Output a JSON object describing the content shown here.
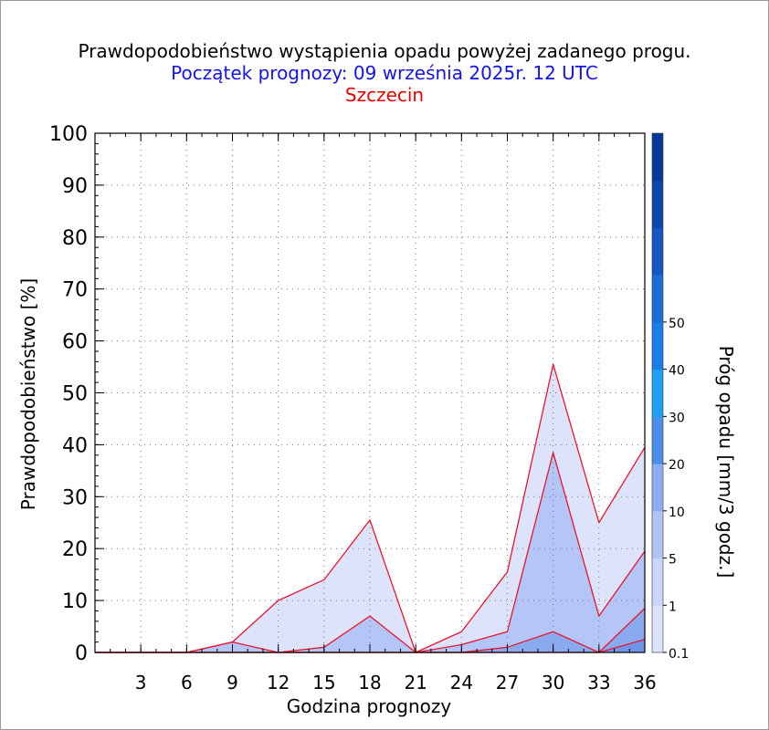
{
  "chart_data": {
    "type": "area",
    "title": "Prawdopodobieństwo wystąpienia opadu powyżej zadanego progu.",
    "subtitle": "Początek prognozy: 09 września 2025r. 12 UTC",
    "location": "Szczecin",
    "xlabel": "Godzina prognozy",
    "ylabel": "Prawdopodobieństwo [%]",
    "colorbar_label": "Próg opadu [mm/3 godz.]",
    "x": [
      0,
      3,
      6,
      9,
      12,
      15,
      18,
      21,
      24,
      27,
      30,
      33,
      36
    ],
    "xticks": [
      "3",
      "6",
      "9",
      "12",
      "15",
      "18",
      "21",
      "24",
      "27",
      "30",
      "33",
      "36"
    ],
    "yticks": [
      "0",
      "10",
      "20",
      "30",
      "40",
      "50",
      "60",
      "70",
      "80",
      "90",
      "100"
    ],
    "xlim": [
      0,
      36
    ],
    "ylim": [
      0,
      100
    ],
    "grid": true,
    "series": [
      {
        "name": "0.1",
        "color": "#dde3fb",
        "values": [
          0,
          0,
          0,
          2,
          10,
          14,
          25.5,
          0,
          4,
          15.5,
          55.5,
          25,
          39.5
        ]
      },
      {
        "name": "1",
        "color": "#b4c5f7",
        "values": [
          0,
          0,
          0,
          2,
          0,
          1,
          7,
          0,
          1.5,
          4,
          38.5,
          7,
          19.5
        ]
      },
      {
        "name": "5",
        "color": "#8aaaf0",
        "values": [
          0,
          0,
          0,
          0,
          0,
          0,
          0,
          0,
          0,
          1,
          4,
          0,
          8.5
        ]
      },
      {
        "name": "10",
        "color": "#6f96ea",
        "values": [
          0,
          0,
          0,
          0,
          0,
          0,
          0,
          0,
          0,
          0,
          0,
          0,
          2.5
        ]
      }
    ],
    "colorbar": {
      "tick_labels": [
        "0.1",
        "1",
        "5",
        "10",
        "20",
        "30",
        "40",
        "50"
      ],
      "colors": [
        "#dde3fb",
        "#c9d5fa",
        "#b0c5f6",
        "#8cadf1",
        "#4a90e8",
        "#1fa0f5",
        "#1b7de6",
        "#1a6ed8",
        "#1457c4",
        "#0d45ad",
        "#083896"
      ]
    }
  }
}
